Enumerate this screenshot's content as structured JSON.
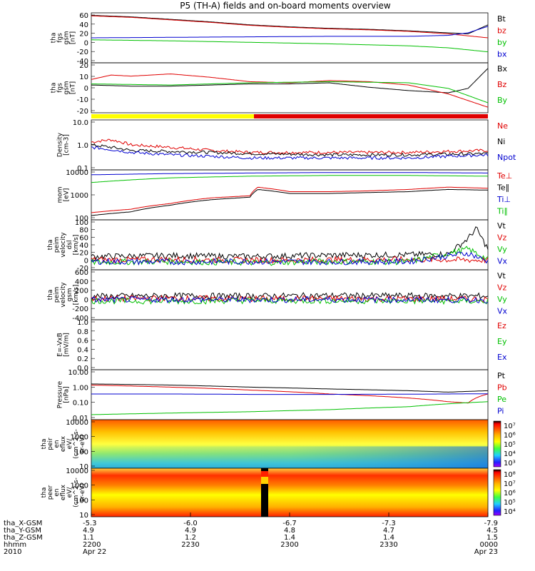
{
  "title": "P5 (TH-A) fields and on-board moments overview",
  "colors": {
    "black": "#000000",
    "red": "#e00000",
    "green": "#00c000",
    "blue": "#0000d0",
    "yellow": "#ffff00"
  },
  "chart_data": [
    {
      "type": "line",
      "ylabel": [
        "tha",
        "fgs",
        "gsm",
        "[nT]"
      ],
      "yticks": [
        "60",
        "40",
        "20",
        "0",
        "-20",
        "-40"
      ],
      "ylim": [
        -40,
        60
      ],
      "legend": [
        {
          "name": "Bt",
          "color": "black"
        },
        {
          "name": "bz",
          "color": "red"
        },
        {
          "name": "by",
          "color": "green"
        },
        {
          "name": "bx",
          "color": "blue"
        }
      ],
      "series": [
        {
          "name": "Bt",
          "color": "black",
          "x": [
            0,
            0.1,
            0.2,
            0.3,
            0.4,
            0.5,
            0.6,
            0.7,
            0.8,
            0.9,
            0.95,
            1
          ],
          "values": [
            55,
            52,
            47,
            42,
            36,
            32,
            29,
            27,
            24,
            20,
            18,
            36
          ]
        },
        {
          "name": "bz",
          "color": "red",
          "x": [
            0,
            0.1,
            0.2,
            0.3,
            0.4,
            0.5,
            0.6,
            0.7,
            0.8,
            0.9,
            0.95,
            1
          ],
          "values": [
            54,
            51,
            46,
            41,
            35,
            31,
            28,
            26,
            23,
            18,
            14,
            10
          ]
        },
        {
          "name": "by",
          "color": "green",
          "x": [
            0,
            0.2,
            0.4,
            0.6,
            0.8,
            0.9,
            1
          ],
          "values": [
            6,
            4,
            1,
            -2,
            -6,
            -10,
            -18
          ]
        },
        {
          "name": "bx",
          "color": "blue",
          "x": [
            0,
            0.2,
            0.4,
            0.6,
            0.8,
            0.9,
            0.95,
            1
          ],
          "values": [
            10,
            11,
            12,
            13,
            13,
            15,
            20,
            33
          ]
        }
      ]
    },
    {
      "type": "line",
      "ylabel": [
        "tha",
        "fgs",
        "gsm",
        "[nT]"
      ],
      "yticks": [
        "20",
        "10",
        "0",
        "-10",
        "-20"
      ],
      "ylim": [
        -25,
        20
      ],
      "legend": [
        {
          "name": "Bx",
          "color": "black"
        },
        {
          "name": "Bz",
          "color": "red"
        },
        {
          "name": "By",
          "color": "green"
        }
      ],
      "series": [
        {
          "name": "Bx",
          "color": "black",
          "x": [
            0,
            0.1,
            0.2,
            0.3,
            0.4,
            0.5,
            0.6,
            0.7,
            0.8,
            0.9,
            0.95,
            1
          ],
          "values": [
            0,
            -1,
            -1,
            0,
            1,
            1,
            2,
            -2,
            -5,
            -7,
            -3,
            15
          ]
        },
        {
          "name": "Bz",
          "color": "red",
          "x": [
            0,
            0.05,
            0.1,
            0.2,
            0.3,
            0.4,
            0.5,
            0.6,
            0.7,
            0.8,
            0.9,
            1
          ],
          "values": [
            5,
            9,
            8,
            10,
            7,
            3,
            2,
            4,
            3,
            0,
            -8,
            -20
          ]
        },
        {
          "name": "By",
          "color": "green",
          "x": [
            0,
            0.2,
            0.4,
            0.6,
            0.8,
            0.9,
            1
          ],
          "values": [
            1,
            0,
            2,
            3,
            2,
            -3,
            -16
          ]
        }
      ]
    },
    {
      "type": "line",
      "log": true,
      "ylabel": [
        "Density",
        "[cm-3]"
      ],
      "yticks": [
        "10.0",
        "1.0",
        "0.1"
      ],
      "ylim": [
        0.1,
        10
      ],
      "legend": [
        {
          "name": "Ne",
          "color": "red"
        },
        {
          "name": "Ni",
          "color": "black"
        },
        {
          "name": "Npot",
          "color": "blue"
        }
      ],
      "series": [
        {
          "name": "Ne",
          "color": "red",
          "x": [
            0,
            0.05,
            0.1,
            0.2,
            0.3,
            0.4,
            0.6,
            0.8,
            0.9,
            1
          ],
          "values": [
            1.3,
            1.6,
            1.0,
            0.8,
            0.6,
            0.5,
            0.5,
            0.5,
            0.55,
            0.6
          ]
        },
        {
          "name": "Ni",
          "color": "black",
          "x": [
            0,
            0.1,
            0.2,
            0.3,
            0.4,
            0.6,
            0.8,
            1
          ],
          "values": [
            1.0,
            0.6,
            0.55,
            0.5,
            0.45,
            0.4,
            0.4,
            0.45
          ]
        },
        {
          "name": "Npot",
          "color": "blue",
          "x": [
            0,
            0.1,
            0.2,
            0.3,
            0.4,
            0.6,
            0.8,
            1
          ],
          "values": [
            0.8,
            0.5,
            0.4,
            0.35,
            0.3,
            0.3,
            0.3,
            0.4
          ]
        }
      ]
    },
    {
      "type": "line",
      "log": true,
      "ylabel": [
        "mom",
        "[eV]"
      ],
      "yticks": [
        "10000",
        "1000",
        "100"
      ],
      "ylim": [
        50,
        12000
      ],
      "legend": [
        {
          "name": "Te⊥",
          "color": "red"
        },
        {
          "name": "Te∥",
          "color": "black"
        },
        {
          "name": "Ti⊥",
          "color": "blue"
        },
        {
          "name": "Ti∥",
          "color": "green"
        }
      ],
      "series": [
        {
          "name": "Te⊥",
          "color": "red",
          "x": [
            0,
            0.1,
            0.2,
            0.3,
            0.4,
            0.42,
            0.5,
            0.6,
            0.7,
            0.8,
            0.9,
            1
          ],
          "values": [
            110,
            160,
            300,
            550,
            700,
            1800,
            1100,
            1100,
            1200,
            1400,
            1800,
            1600
          ]
        },
        {
          "name": "Te∥",
          "color": "black",
          "x": [
            0,
            0.1,
            0.2,
            0.3,
            0.4,
            0.42,
            0.5,
            0.6,
            0.7,
            0.8,
            0.9,
            1
          ],
          "values": [
            80,
            120,
            250,
            450,
            600,
            1400,
            900,
            900,
            1000,
            1100,
            1400,
            1300
          ]
        },
        {
          "name": "Ti⊥",
          "color": "blue",
          "x": [
            0,
            0.2,
            0.4,
            0.6,
            0.8,
            1
          ],
          "values": [
            7000,
            8000,
            8500,
            9000,
            9000,
            8500
          ]
        },
        {
          "name": "Ti∥",
          "color": "green",
          "x": [
            0,
            0.1,
            0.2,
            0.4,
            0.6,
            0.8,
            1
          ],
          "values": [
            3000,
            4000,
            5000,
            6000,
            6500,
            6500,
            6000
          ]
        }
      ]
    },
    {
      "type": "line",
      "ylabel": [
        "tha",
        "peim",
        "velocity",
        "dsl",
        "[km/s]"
      ],
      "yticks": [
        "100",
        "80",
        "60",
        "40",
        "20",
        "0",
        "-20"
      ],
      "ylim": [
        -20,
        100
      ],
      "legend": [
        {
          "name": "Vt",
          "color": "black"
        },
        {
          "name": "Vz",
          "color": "red"
        },
        {
          "name": "Vy",
          "color": "green"
        },
        {
          "name": "Vx",
          "color": "blue"
        }
      ],
      "series": [
        {
          "name": "Vt",
          "color": "black",
          "x": [
            0,
            0.2,
            0.4,
            0.6,
            0.8,
            0.9,
            0.95,
            0.97,
            1
          ],
          "values": [
            12,
            14,
            12,
            15,
            16,
            18,
            55,
            80,
            30
          ]
        },
        {
          "name": "Vz",
          "color": "red",
          "x": [
            0,
            0.2,
            0.4,
            0.6,
            0.8,
            1
          ],
          "values": [
            4,
            5,
            3,
            4,
            5,
            3
          ]
        },
        {
          "name": "Vy",
          "color": "green",
          "x": [
            0,
            0.2,
            0.4,
            0.6,
            0.8,
            0.95,
            1
          ],
          "values": [
            -2,
            0,
            -3,
            0,
            -1,
            30,
            5
          ]
        },
        {
          "name": "Vx",
          "color": "blue",
          "x": [
            0,
            0.2,
            0.4,
            0.6,
            0.8,
            0.95,
            1
          ],
          "values": [
            0,
            -1,
            0,
            -1,
            0,
            20,
            0
          ]
        }
      ]
    },
    {
      "type": "line",
      "ylabel": [
        "tha",
        "peim",
        "velocity",
        "gsm",
        "[km/s]"
      ],
      "yticks": [
        "600",
        "400",
        "200",
        "0",
        "-200",
        "-400"
      ],
      "ylim": [
        -400,
        600
      ],
      "legend": [
        {
          "name": "Vt",
          "color": "black"
        },
        {
          "name": "Vz",
          "color": "red"
        },
        {
          "name": "Vy",
          "color": "green"
        },
        {
          "name": "Vx",
          "color": "blue"
        }
      ],
      "series": [
        {
          "name": "Vt",
          "color": "black",
          "x": [
            0,
            0.2,
            0.4,
            0.6,
            0.8,
            1
          ],
          "values": [
            70,
            80,
            75,
            85,
            80,
            75
          ]
        },
        {
          "name": "Vz",
          "color": "red",
          "x": [
            0,
            0.2,
            0.4,
            0.6,
            0.8,
            1
          ],
          "values": [
            20,
            30,
            20,
            25,
            20,
            15
          ]
        },
        {
          "name": "Vy",
          "color": "green",
          "x": [
            0,
            0.2,
            0.4,
            0.6,
            0.8,
            1
          ],
          "values": [
            -20,
            -30,
            -15,
            -20,
            -25,
            -30
          ]
        },
        {
          "name": "Vx",
          "color": "blue",
          "x": [
            0,
            0.2,
            0.4,
            0.6,
            0.8,
            1
          ],
          "values": [
            0,
            5,
            0,
            5,
            0,
            -5
          ]
        }
      ]
    },
    {
      "type": "line",
      "ylabel": [
        "E=-VxB",
        "[mV/m]"
      ],
      "yticks": [
        "1.0",
        "0.8",
        "0.6",
        "0.4",
        "0.2",
        "0.0"
      ],
      "ylim": [
        0,
        1
      ],
      "legend": [
        {
          "name": "Ez",
          "color": "red"
        },
        {
          "name": "Ey",
          "color": "green"
        },
        {
          "name": "Ex",
          "color": "blue"
        }
      ],
      "series": []
    },
    {
      "type": "line",
      "log": true,
      "ylabel": [
        "Pressure",
        "[nPa]"
      ],
      "yticks": [
        "10.00",
        "1.00",
        "0.10",
        "0.01"
      ],
      "ylim": [
        0.01,
        10
      ],
      "legend": [
        {
          "name": "Pt",
          "color": "black"
        },
        {
          "name": "Pb",
          "color": "red"
        },
        {
          "name": "Pe",
          "color": "green"
        },
        {
          "name": "Pi",
          "color": "blue"
        }
      ],
      "series": [
        {
          "name": "Pt",
          "color": "black",
          "x": [
            0,
            0.2,
            0.4,
            0.6,
            0.8,
            0.9,
            1
          ],
          "values": [
            1.4,
            1.2,
            0.9,
            0.7,
            0.55,
            0.45,
            0.55
          ]
        },
        {
          "name": "Pb",
          "color": "red",
          "x": [
            0,
            0.2,
            0.4,
            0.6,
            0.8,
            0.9,
            0.95,
            1
          ],
          "values": [
            1.2,
            0.9,
            0.6,
            0.35,
            0.2,
            0.12,
            0.1,
            0.35
          ]
        },
        {
          "name": "Pe",
          "color": "green",
          "x": [
            0,
            0.2,
            0.4,
            0.6,
            0.8,
            0.9,
            1
          ],
          "values": [
            0.02,
            0.025,
            0.03,
            0.04,
            0.06,
            0.09,
            0.12
          ]
        },
        {
          "name": "Pi",
          "color": "blue",
          "x": [
            0,
            0.2,
            0.4,
            0.6,
            0.8,
            1
          ],
          "values": [
            0.35,
            0.35,
            0.33,
            0.33,
            0.34,
            0.36
          ]
        }
      ]
    },
    {
      "type": "heatmap",
      "ylabel": [
        "tha",
        "peir",
        "en",
        "eflux",
        "eV/",
        "(cm^2-s-",
        "sr-eV)"
      ],
      "yticks": [
        "10000",
        "1000",
        "100",
        "10"
      ],
      "colorbar": [
        "10⁷",
        "10⁶",
        "10⁵",
        "10⁴",
        "10³"
      ]
    },
    {
      "type": "heatmap",
      "ylabel": [
        "tha",
        "peer",
        "en",
        "eflux",
        "eV/",
        "(cm^2-s-",
        "sr-eV)"
      ],
      "yticks": [
        "10000",
        "1000",
        "100",
        "10"
      ],
      "colorbar": [
        "10⁸",
        "10⁷",
        "10⁶",
        "10⁵",
        "10⁴"
      ]
    }
  ],
  "footer": {
    "labels": [
      "tha_X-GSM",
      "tha_Y-GSM",
      "tha_Z-GSM",
      "hhmm",
      "2010"
    ],
    "columns": [
      [
        "-5.3",
        "4.9",
        "1.1",
        "2200",
        "Apr 22"
      ],
      [
        "-6.0",
        "4.9",
        "1.2",
        "2230",
        ""
      ],
      [
        "-6.7",
        "4.8",
        "1.4",
        "2300",
        ""
      ],
      [
        "-7.3",
        "4.7",
        "1.4",
        "2330",
        ""
      ],
      [
        "-7.9",
        "4.5",
        "1.5",
        "0000",
        "Apr 23"
      ]
    ]
  }
}
